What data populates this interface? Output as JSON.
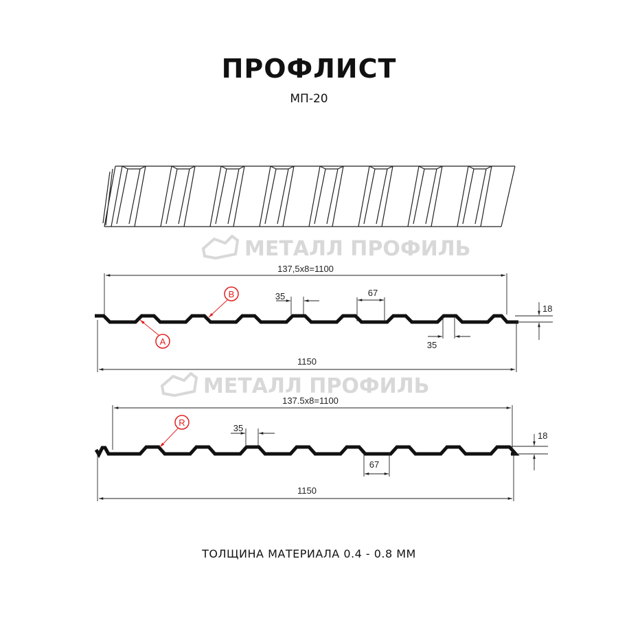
{
  "title": "ПРОФЛИСТ",
  "model": "МП-20",
  "watermark": "МЕТАЛЛ ПРОФИЛЬ",
  "profile_a": {
    "pitch_label": "137,5x8=1100",
    "total_width": "1150",
    "crest_width": "35",
    "valley_width": "67",
    "bottom_crest_width": "35",
    "height": "18",
    "marker_b": "B",
    "marker_a": "A"
  },
  "profile_r": {
    "pitch_label": "137.5x8=1100",
    "total_width": "1150",
    "crest_width": "35",
    "valley_width": "67",
    "height": "18",
    "marker_r": "R"
  },
  "footer": "ТОЛЩИНА МАТЕРИАЛА 0.4 - 0.8 ММ",
  "colors": {
    "line": "#111111",
    "marker": "#e02020",
    "watermark": "#d8d8d8"
  }
}
